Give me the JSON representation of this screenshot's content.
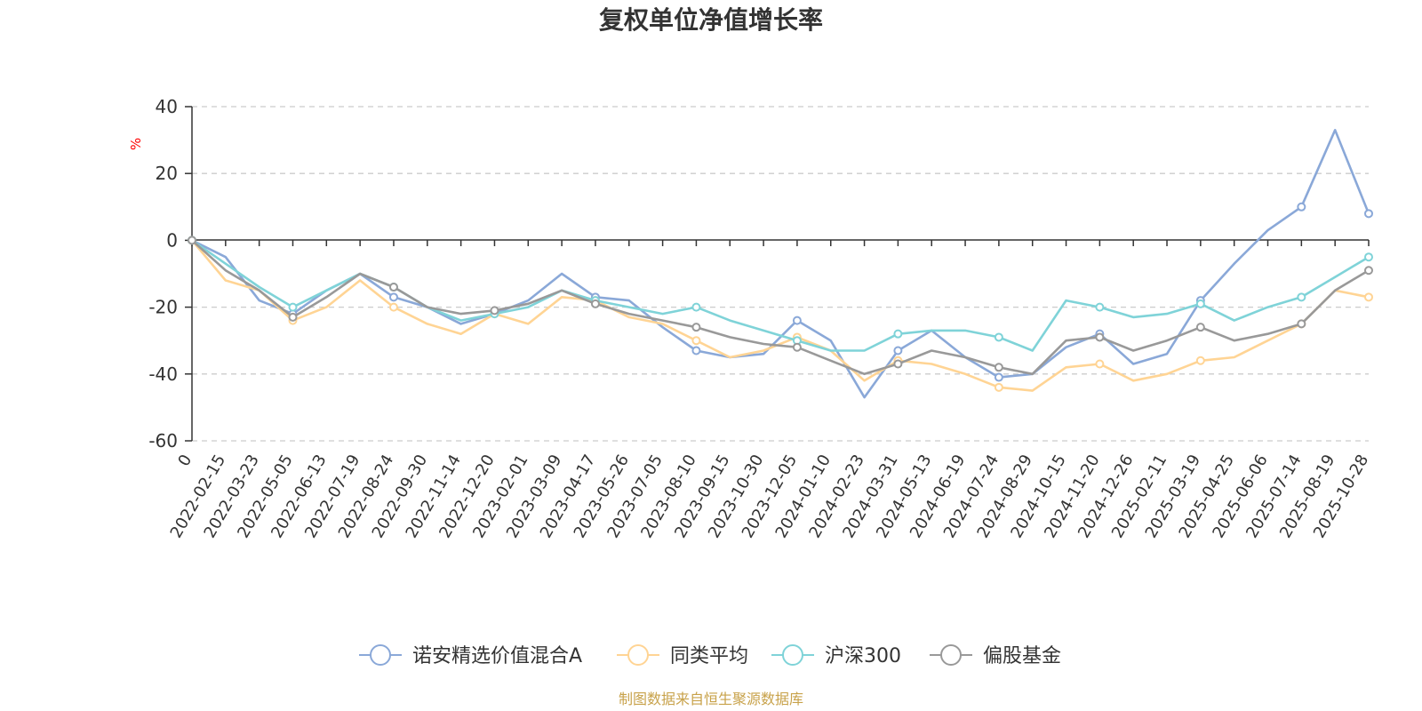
{
  "chart_data": {
    "type": "line",
    "title": "复权单位净值增长率",
    "ylabel": "%",
    "ylim": [
      -60,
      40
    ],
    "yticks": [
      40,
      20,
      0,
      -20,
      -40,
      -60
    ],
    "x_labels": [
      "0",
      "2022-02-15",
      "2022-03-23",
      "2022-05-05",
      "2022-06-13",
      "2022-07-19",
      "2022-08-24",
      "2022-09-30",
      "2022-11-14",
      "2022-12-20",
      "2023-02-01",
      "2023-03-09",
      "2023-04-17",
      "2023-05-26",
      "2023-07-05",
      "2023-08-10",
      "2023-09-15",
      "2023-10-30",
      "2023-12-05",
      "2024-01-10",
      "2024-02-23",
      "2024-03-31",
      "2024-05-13",
      "2024-06-19",
      "2024-07-24",
      "2024-08-29",
      "2024-10-15",
      "2024-11-20",
      "2024-12-26",
      "2025-02-11",
      "2025-03-19",
      "2025-04-25",
      "2025-06-06",
      "2025-07-14",
      "2025-08-19",
      "2025-10-28"
    ],
    "grid": true,
    "legend_position": "bottom",
    "series": [
      {
        "name": "诺安精选价值混合A",
        "color": "#8aa8d8",
        "values": [
          0,
          -5,
          -18,
          -22,
          -15,
          -10,
          -17,
          -20,
          -25,
          -22,
          -18,
          -10,
          -17,
          -18,
          -26,
          -33,
          -35,
          -34,
          -24,
          -30,
          -47,
          -33,
          -27,
          -35,
          -41,
          -40,
          -32,
          -28,
          -37,
          -34,
          -18,
          -7,
          3,
          10,
          33,
          8
        ]
      },
      {
        "name": "同类平均",
        "color": "#ffd494",
        "values": [
          0,
          -12,
          -15,
          -24,
          -20,
          -12,
          -20,
          -25,
          -28,
          -22,
          -25,
          -17,
          -18,
          -23,
          -25,
          -30,
          -35,
          -33,
          -29,
          -33,
          -42,
          -36,
          -37,
          -40,
          -44,
          -45,
          -38,
          -37,
          -42,
          -40,
          -36,
          -35,
          -30,
          -25,
          -15,
          -17
        ]
      },
      {
        "name": "沪深300",
        "color": "#7fd3d8",
        "values": [
          0,
          -7,
          -14,
          -20,
          -15,
          -10,
          -14,
          -20,
          -24,
          -22,
          -20,
          -15,
          -18,
          -20,
          -22,
          -20,
          -24,
          -27,
          -30,
          -33,
          -33,
          -28,
          -27,
          -27,
          -29,
          -33,
          -18,
          -20,
          -23,
          -22,
          -19,
          -24,
          -20,
          -17,
          -11,
          -5
        ]
      },
      {
        "name": "偏股基金",
        "color": "#999999",
        "values": [
          0,
          -9,
          -15,
          -23,
          -17,
          -10,
          -14,
          -20,
          -22,
          -21,
          -19,
          -15,
          -19,
          -22,
          -24,
          -26,
          -29,
          -31,
          -32,
          -36,
          -40,
          -37,
          -33,
          -35,
          -38,
          -40,
          -30,
          -29,
          -33,
          -30,
          -26,
          -30,
          -28,
          -25,
          -15,
          -9
        ]
      }
    ]
  },
  "source_text": "制图数据来自恒生聚源数据库"
}
